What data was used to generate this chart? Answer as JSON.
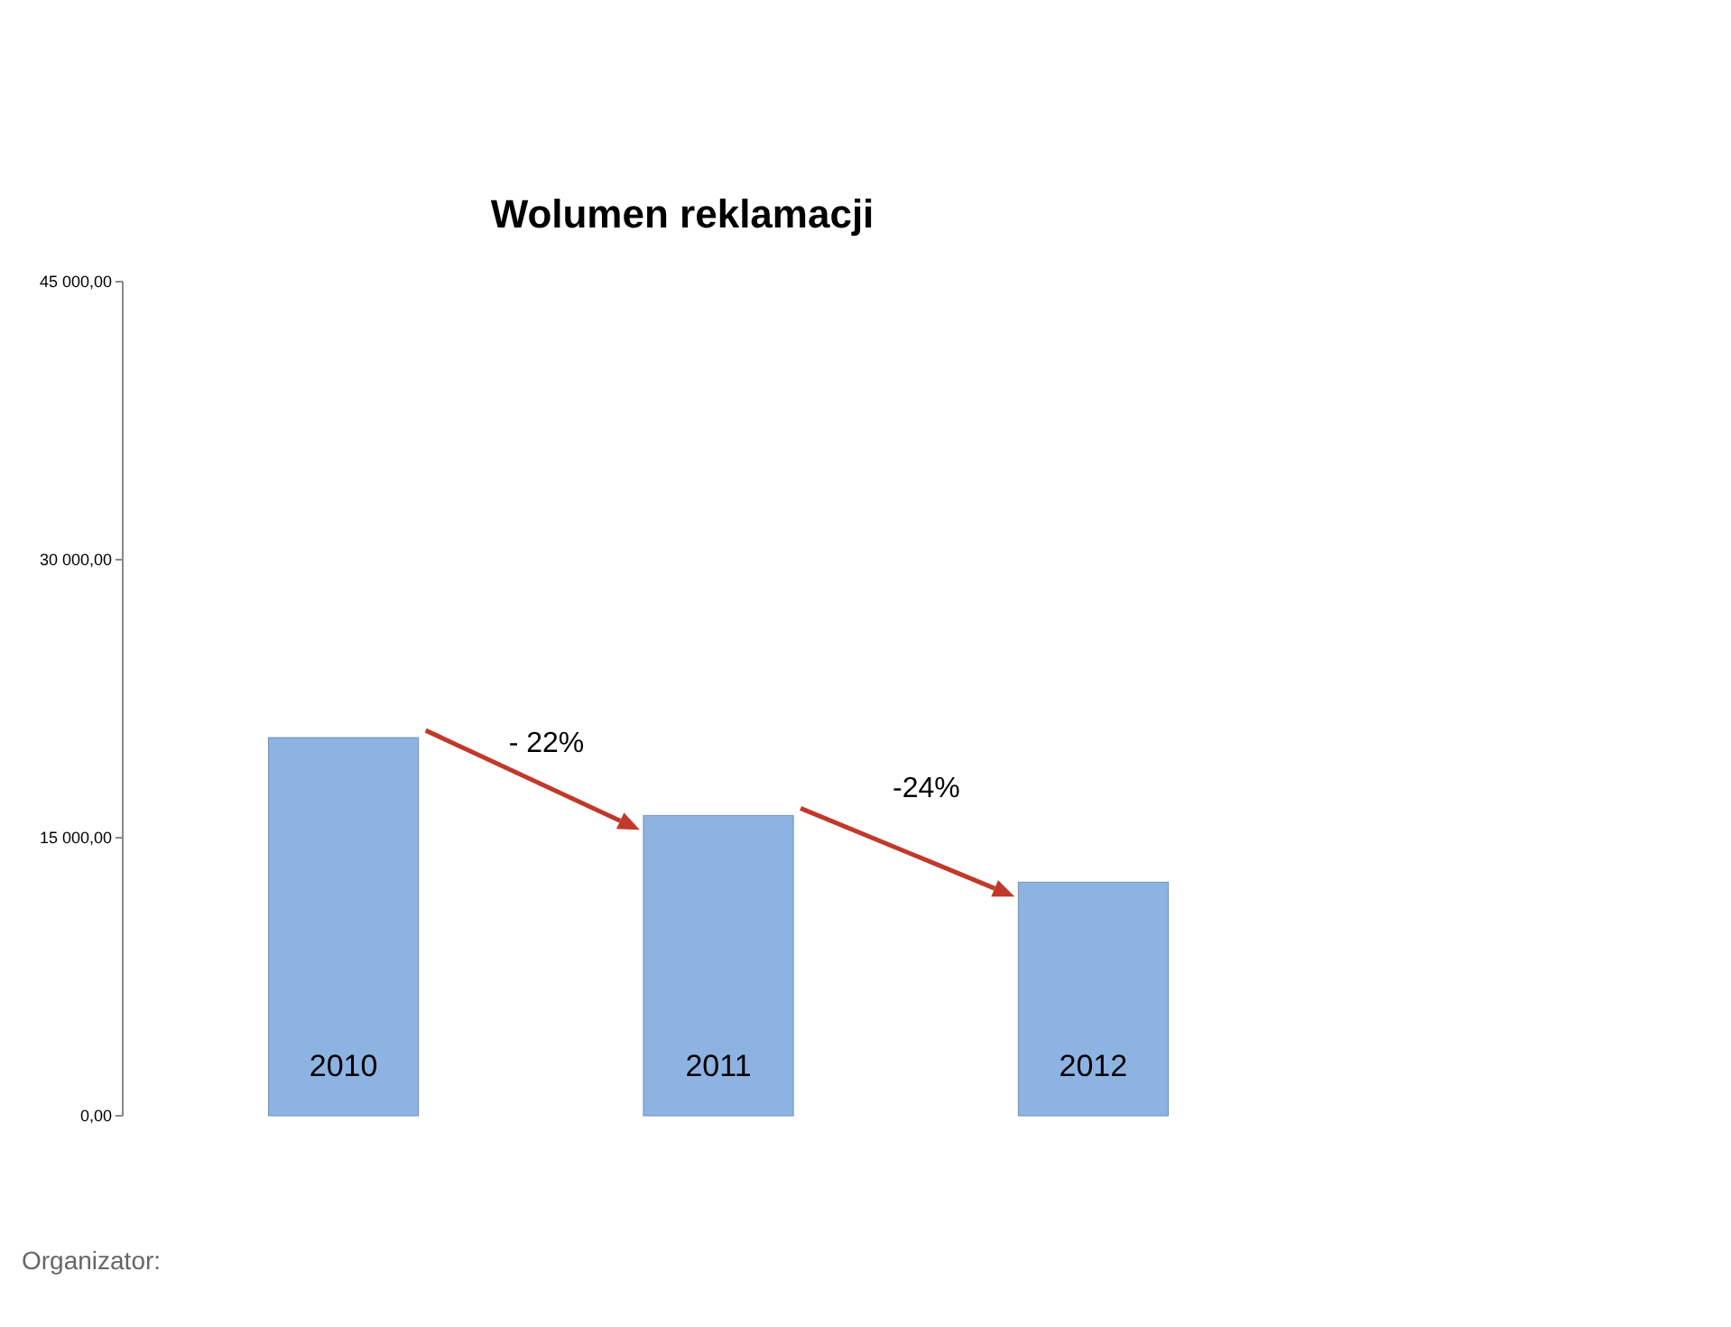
{
  "chart_data": {
    "type": "bar",
    "title": "Wolumen reklamacji",
    "categories": [
      "2010",
      "2011",
      "2012"
    ],
    "values": [
      20400,
      16200,
      12600
    ],
    "color": "#8db3e2",
    "ylim": [
      0,
      45000
    ],
    "yticks": [
      {
        "value": 0,
        "label": "0,00"
      },
      {
        "value": 15000,
        "label": "15 000,00"
      },
      {
        "value": 30000,
        "label": "30 000,00"
      },
      {
        "value": 45000,
        "label": "45 000,00"
      }
    ],
    "grid": false,
    "annotations": [
      "- 22%",
      "-24%",
      "Organizator:"
    ]
  }
}
